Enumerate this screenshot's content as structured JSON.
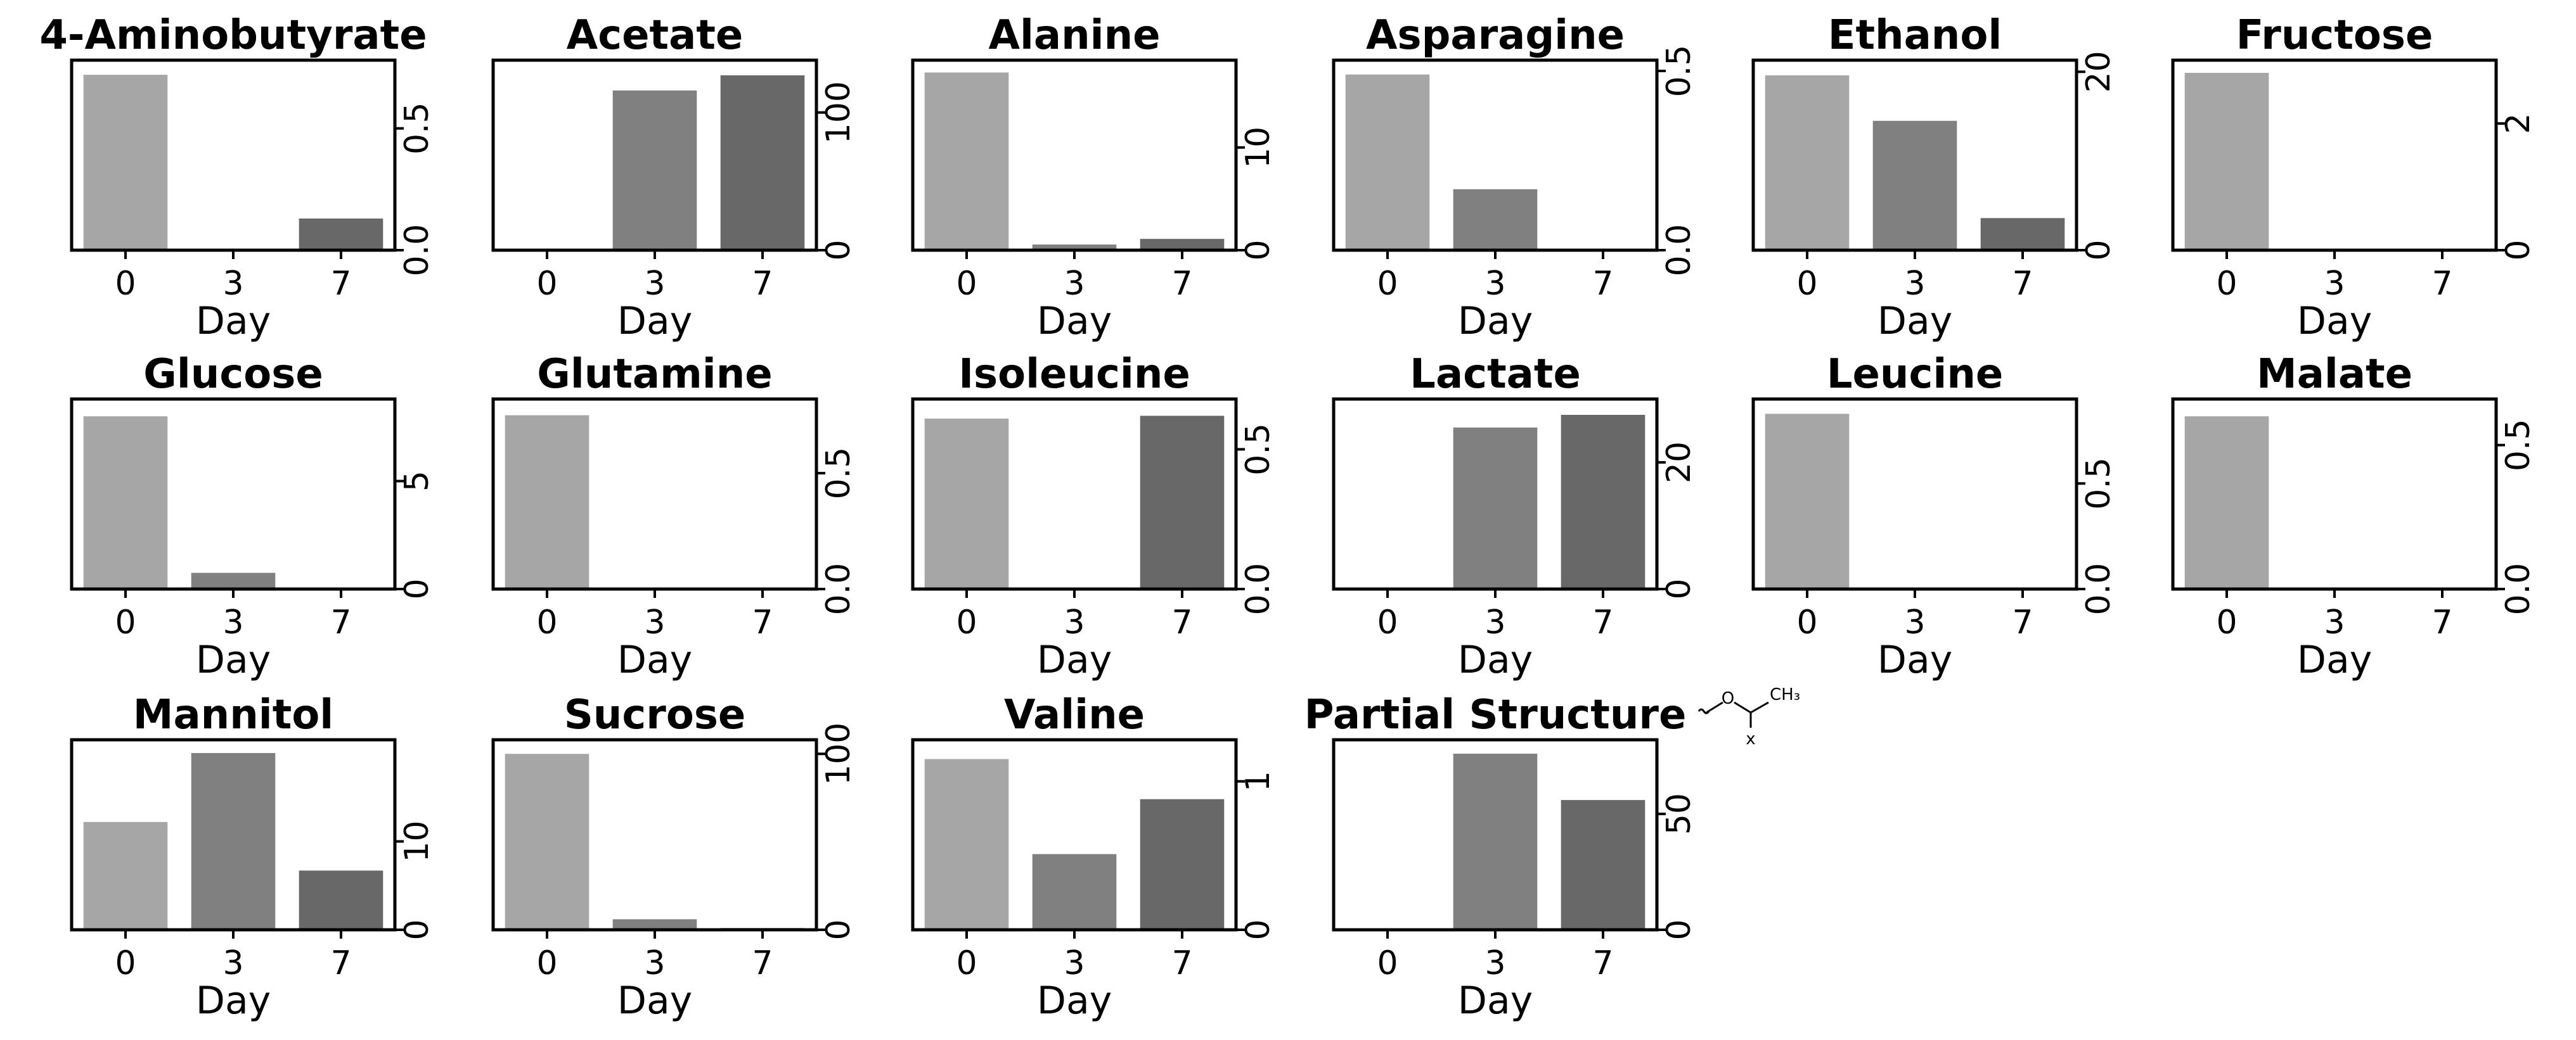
{
  "chart_data": {
    "type": "bar",
    "layout": "small-multiples 3x6",
    "xlabel": "Day",
    "categories": [
      "0",
      "3",
      "7"
    ],
    "bar_colors": [
      "#a6a6a6",
      "#808080",
      "#686868"
    ],
    "panels": [
      {
        "title": "4-Aminobutyrate",
        "values": [
          0.72,
          0.0,
          0.13
        ],
        "ylim": [
          0,
          0.78
        ],
        "yticks": [
          0.0,
          0.5
        ],
        "yticklabels": [
          "0.0",
          "0.5"
        ]
      },
      {
        "title": "Acetate",
        "values": [
          0,
          116,
          127
        ],
        "ylim": [
          0,
          138
        ],
        "yticks": [
          0,
          100
        ],
        "yticklabels": [
          "0",
          "100"
        ]
      },
      {
        "title": "Alanine",
        "values": [
          17.3,
          0.55,
          1.1
        ],
        "ylim": [
          0,
          18.5
        ],
        "yticks": [
          0,
          10
        ],
        "yticklabels": [
          "0",
          "10"
        ]
      },
      {
        "title": "Asparagine",
        "values": [
          0.49,
          0.17,
          0.0
        ],
        "ylim": [
          0,
          0.53
        ],
        "yticks": [
          0.0,
          0.5
        ],
        "yticklabels": [
          "0.0",
          "0.5"
        ]
      },
      {
        "title": "Ethanol",
        "values": [
          19.6,
          14.5,
          3.6
        ],
        "ylim": [
          0,
          21.3
        ],
        "yticks": [
          0,
          20
        ],
        "yticklabels": [
          "0",
          "20"
        ]
      },
      {
        "title": "Fructose",
        "values": [
          2.8,
          0.0,
          0.02
        ],
        "ylim": [
          0,
          3.0
        ],
        "yticks": [
          0,
          2
        ],
        "yticklabels": [
          "0",
          "2"
        ]
      },
      {
        "title": "Glucose",
        "values": [
          8.0,
          0.75,
          0.0
        ],
        "ylim": [
          0,
          8.8
        ],
        "yticks": [
          0,
          5
        ],
        "yticklabels": [
          "0",
          "5"
        ]
      },
      {
        "title": "Glutamine",
        "values": [
          0.75,
          0.0,
          0.0
        ],
        "ylim": [
          0,
          0.82
        ],
        "yticks": [
          0.0,
          0.5
        ],
        "yticklabels": [
          "0.0",
          "0.5"
        ]
      },
      {
        "title": "Isoleucine",
        "values": [
          0.61,
          0.0,
          0.62
        ],
        "ylim": [
          0,
          0.68
        ],
        "yticks": [
          0.0,
          0.5
        ],
        "yticklabels": [
          "0.0",
          "0.5"
        ]
      },
      {
        "title": "Lactate",
        "values": [
          0,
          25.5,
          27.5
        ],
        "ylim": [
          0,
          30
        ],
        "yticks": [
          0,
          20
        ],
        "yticklabels": [
          "0",
          "20"
        ]
      },
      {
        "title": "Leucine",
        "values": [
          0.83,
          0.0,
          0.0
        ],
        "ylim": [
          0,
          0.9
        ],
        "yticks": [
          0.0,
          0.5
        ],
        "yticklabels": [
          "0.0",
          "0.5"
        ]
      },
      {
        "title": "Malate",
        "values": [
          0.6,
          0.0,
          0.0
        ],
        "ylim": [
          0,
          0.66
        ],
        "yticks": [
          0.0,
          0.5
        ],
        "yticklabels": [
          "0.0",
          "0.5"
        ]
      },
      {
        "title": "Mannitol",
        "values": [
          12.2,
          20.0,
          6.7
        ],
        "ylim": [
          0,
          21.5
        ],
        "yticks": [
          0,
          10
        ],
        "yticklabels": [
          "0",
          "10"
        ]
      },
      {
        "title": "Sucrose",
        "values": [
          100,
          6,
          1
        ],
        "ylim": [
          0,
          108
        ],
        "yticks": [
          0,
          100
        ],
        "yticklabels": [
          "0",
          "100"
        ]
      },
      {
        "title": "Valine",
        "values": [
          1.15,
          0.51,
          0.88
        ],
        "ylim": [
          0,
          1.28
        ],
        "yticks": [
          0,
          1
        ],
        "yticklabels": [
          "0",
          "1"
        ]
      },
      {
        "title": "Partial Structure",
        "values": [
          0,
          76,
          56
        ],
        "ylim": [
          0,
          82
        ],
        "yticks": [
          0,
          50
        ],
        "yticklabels": [
          "0",
          "50"
        ],
        "has_structure": true
      }
    ]
  },
  "structure_labels": {
    "oxygen": "O",
    "methyl": "CH₃",
    "substituent": "x"
  }
}
